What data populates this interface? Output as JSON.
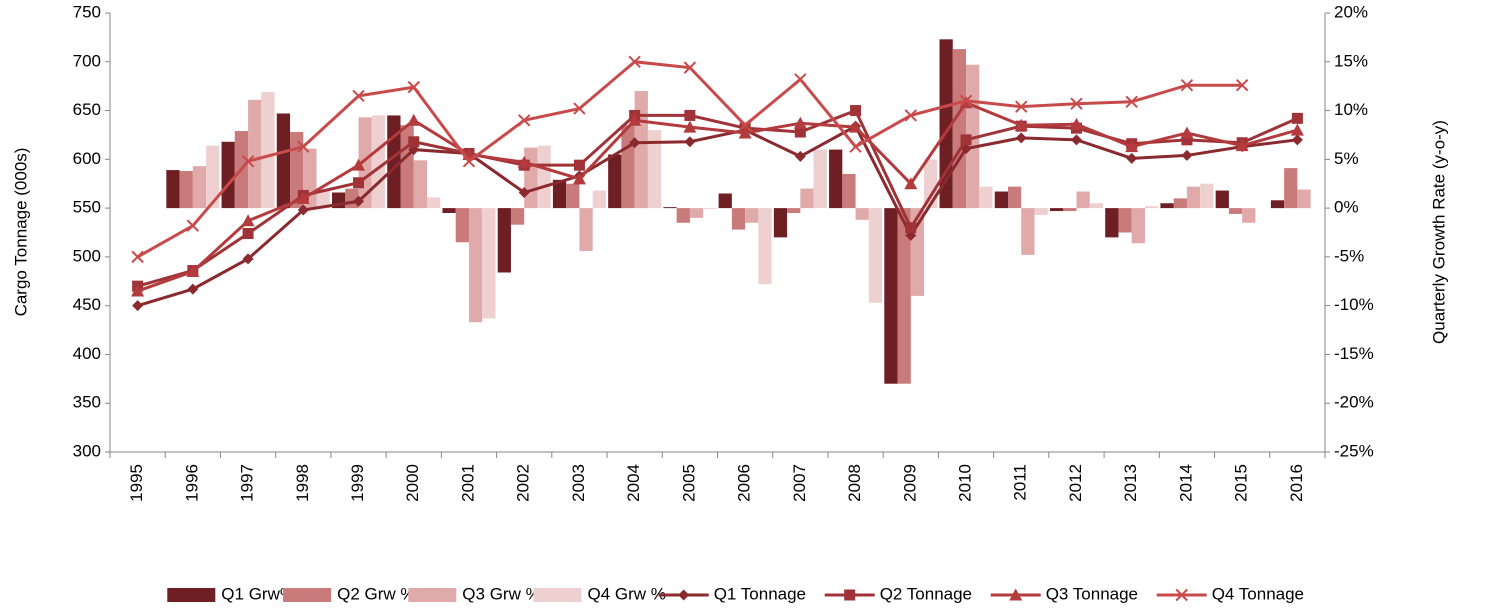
{
  "chart_data": {
    "type": "bar-line",
    "y_label": "Cargo Tonnage (000s)",
    "y2_label": "Quarterly Growth Rate (y-o-y)",
    "categories": [
      "1995",
      "1996",
      "1997",
      "1998",
      "1999",
      "2000",
      "2001",
      "2002",
      "2003",
      "2004",
      "2005",
      "2006",
      "2007",
      "2008",
      "2009",
      "2010",
      "2011",
      "2012",
      "2013",
      "2014",
      "2015",
      "2016"
    ],
    "ylim": [
      300,
      750
    ],
    "yticks": [
      300,
      350,
      400,
      450,
      500,
      550,
      600,
      650,
      700,
      750
    ],
    "y2lim": [
      -25,
      20
    ],
    "y2ticks": [
      {
        "value": -25,
        "label": "-25%"
      },
      {
        "value": -20,
        "label": "-20%"
      },
      {
        "value": -15,
        "label": "-15%"
      },
      {
        "value": -10,
        "label": "-10%"
      },
      {
        "value": -5,
        "label": "-5%"
      },
      {
        "value": 0,
        "label": "0%"
      },
      {
        "value": 5,
        "label": "5%"
      },
      {
        "value": 10,
        "label": "10%"
      },
      {
        "value": 15,
        "label": "15%"
      },
      {
        "value": 20,
        "label": "20%"
      }
    ],
    "legend": "bottom",
    "series": [
      {
        "name": "Q1 Grw%",
        "type": "bar",
        "axis": "y2",
        "color": "#6e1f24",
        "values": [
          null,
          3.9,
          6.8,
          9.7,
          1.6,
          9.5,
          -0.5,
          -6.6,
          2.9,
          5.5,
          0.1,
          1.5,
          -3.0,
          6.0,
          -18.0,
          17.3,
          1.7,
          -0.3,
          -3.0,
          0.5,
          1.8,
          0.8
        ]
      },
      {
        "name": "Q2 Grw %",
        "type": "bar",
        "axis": "y2",
        "color": "#c97a7b",
        "values": [
          null,
          3.8,
          7.9,
          7.8,
          2.0,
          8.5,
          -3.5,
          -1.7,
          2.5,
          8.5,
          -1.5,
          -2.2,
          -0.5,
          3.5,
          -18.0,
          16.3,
          2.2,
          -0.3,
          -2.5,
          1.0,
          -0.6,
          4.1
        ]
      },
      {
        "name": "Q3 Grw %",
        "type": "bar",
        "axis": "y2",
        "color": "#e0aaab",
        "values": [
          null,
          4.3,
          11.1,
          6.1,
          9.3,
          4.9,
          -11.7,
          6.2,
          -4.4,
          12.0,
          -1.0,
          -1.5,
          2.0,
          -1.2,
          -9.0,
          14.7,
          -4.8,
          1.7,
          -3.6,
          2.2,
          -1.5,
          1.9
        ]
      },
      {
        "name": "Q4 Grw %",
        "type": "bar",
        "axis": "y2",
        "color": "#efd0d0",
        "values": [
          null,
          6.4,
          11.9,
          2.0,
          9.5,
          1.1,
          -11.3,
          6.4,
          1.8,
          8.0,
          -0.1,
          -7.8,
          6.0,
          -9.7,
          5.0,
          2.2,
          -0.7,
          0.5,
          0.2,
          2.5,
          null,
          null
        ]
      },
      {
        "name": "Q1 Tonnage",
        "type": "line",
        "marker": "diamond",
        "color": "#8a2a2e",
        "values": [
          450,
          467,
          498,
          548,
          557,
          610,
          606,
          566,
          583,
          617,
          618,
          630,
          603,
          634,
          522,
          611,
          622,
          620,
          601,
          604,
          613,
          620
        ]
      },
      {
        "name": "Q2 Tonnage",
        "type": "line",
        "marker": "square",
        "color": "#a03337",
        "values": [
          470,
          486,
          524,
          563,
          576,
          618,
          606,
          594,
          594,
          645,
          645,
          632,
          628,
          650,
          530,
          620,
          634,
          632,
          616,
          620,
          617,
          642
        ]
      },
      {
        "name": "Q3 Tonnage",
        "type": "line",
        "marker": "triangle",
        "color": "#b33a3d",
        "values": [
          465,
          485,
          537,
          560,
          594,
          640,
          605,
          597,
          580,
          640,
          633,
          627,
          637,
          633,
          575,
          658,
          635,
          636,
          613,
          627,
          614,
          630
        ]
      },
      {
        "name": "Q4 Tonnage",
        "type": "line",
        "marker": "x",
        "color": "#c94a4b",
        "values": [
          500,
          532,
          598,
          613,
          665,
          674,
          598,
          640,
          652,
          700,
          694,
          635,
          682,
          613,
          645,
          660,
          654,
          657,
          659,
          676,
          676,
          null
        ]
      }
    ]
  }
}
